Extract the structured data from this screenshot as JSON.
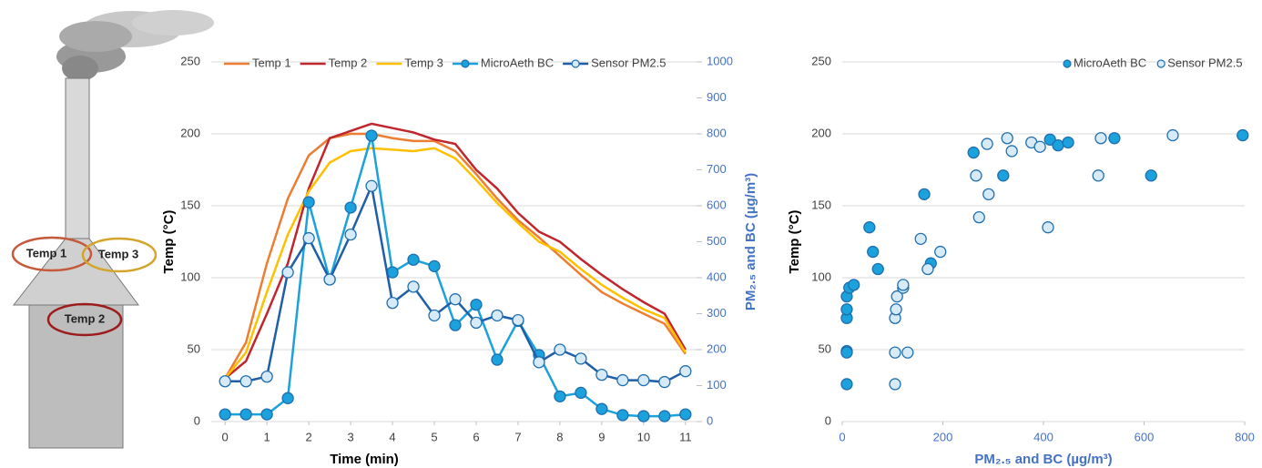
{
  "diagram": {
    "labels": [
      "Temp 1",
      "Temp 3",
      "Temp 2"
    ]
  },
  "chart_data": [
    {
      "type": "line",
      "xlabel": "Time (min)",
      "ylabel": "Temp (°C)",
      "y2label": "PM₂.₅ and BC (µg/m³)",
      "x": [
        0,
        0.5,
        1,
        1.5,
        2,
        2.5,
        3,
        3.5,
        4,
        4.5,
        5,
        5.5,
        6,
        6.5,
        7,
        7.5,
        8,
        8.5,
        9,
        9.5,
        10,
        10.5,
        11
      ],
      "xlim": [
        -0.33,
        11.33
      ],
      "xticks": [
        0,
        1,
        2,
        3,
        4,
        5,
        6,
        7,
        8,
        9,
        10,
        11
      ],
      "ylim": [
        0,
        250
      ],
      "yticks": [
        0,
        50,
        100,
        150,
        200,
        250
      ],
      "y2lim": [
        0,
        1000
      ],
      "y2ticks": [
        0,
        100,
        200,
        300,
        400,
        500,
        600,
        700,
        800,
        900,
        1000
      ],
      "grid": true,
      "series": [
        {
          "name": "Temp 1",
          "color": "#ed7d31",
          "values": [
            30,
            55,
            110,
            155,
            185,
            197,
            200,
            200,
            197,
            195,
            195,
            188,
            172,
            155,
            140,
            128,
            115,
            102,
            90,
            82,
            75,
            68,
            47
          ]
        },
        {
          "name": "Temp 2",
          "color": "#c0262d",
          "values": [
            30,
            42,
            75,
            110,
            162,
            197,
            202,
            207,
            204,
            201,
            196,
            193,
            175,
            162,
            145,
            132,
            125,
            113,
            102,
            92,
            83,
            75,
            50
          ]
        },
        {
          "name": "Temp 3",
          "color": "#ffc000",
          "values": [
            30,
            48,
            90,
            130,
            160,
            180,
            188,
            190,
            189,
            188,
            190,
            183,
            168,
            152,
            138,
            125,
            118,
            106,
            95,
            86,
            78,
            72,
            48
          ]
        },
        {
          "name": "MicroAeth BC",
          "color": "#1ba1dc",
          "marker": "circle",
          "marker_fill": "#1ba1dc",
          "edge_color": "#1f6fb0",
          "axis": "y2",
          "values": [
            20,
            20,
            20,
            65,
            610,
            395,
            595,
            795,
            415,
            450,
            432,
            268,
            325,
            172,
            280,
            185,
            70,
            80,
            35,
            18,
            15,
            15,
            20
          ]
        },
        {
          "name": "Sensor PM2.5",
          "color": "#1f5fa8",
          "marker": "circle",
          "marker_fill": "#d6eaf8",
          "edge_color": "#1f6fb0",
          "axis": "y2",
          "values": [
            112,
            112,
            125,
            415,
            510,
            395,
            520,
            655,
            330,
            375,
            295,
            340,
            275,
            295,
            282,
            165,
            200,
            175,
            130,
            115,
            115,
            110,
            140
          ]
        }
      ]
    },
    {
      "type": "scatter",
      "xlabel": "PM₂.₅ and BC (µg/m³)",
      "ylabel": "Temp (°C)",
      "xlim": [
        0,
        800
      ],
      "xticks": [
        0,
        200,
        400,
        600,
        800
      ],
      "ylim": [
        0,
        250
      ],
      "yticks": [
        0,
        50,
        100,
        150,
        200,
        250
      ],
      "grid": true,
      "series": [
        {
          "name": "MicroAeth BC",
          "color": "#1ba1dc",
          "edge_color": "#1f6fb0",
          "x": [
            9,
            9,
            9,
            9,
            9,
            9,
            14,
            23,
            54,
            61,
            71,
            163,
            176,
            261,
            320,
            413,
            429,
            449,
            541,
            614,
            796
          ],
          "values": [
            26,
            49,
            48,
            72,
            78,
            87,
            93,
            95,
            135,
            118,
            106,
            158,
            110,
            187,
            171,
            196,
            192,
            194,
            197,
            171,
            199
          ]
        },
        {
          "name": "Sensor PM2.5",
          "color": "#d6eaf8",
          "edge_color": "#1f6fb0",
          "x": [
            105,
            105,
            130,
            105,
            107,
            109,
            121,
            121,
            156,
            170,
            195,
            266,
            272,
            288,
            291,
            328,
            337,
            376,
            393,
            409,
            509,
            514,
            657
          ],
          "values": [
            26,
            48,
            48,
            72,
            78,
            87,
            93,
            95,
            127,
            106,
            118,
            171,
            142,
            193,
            158,
            197,
            188,
            194,
            191,
            135,
            171,
            197,
            199
          ]
        }
      ]
    }
  ]
}
